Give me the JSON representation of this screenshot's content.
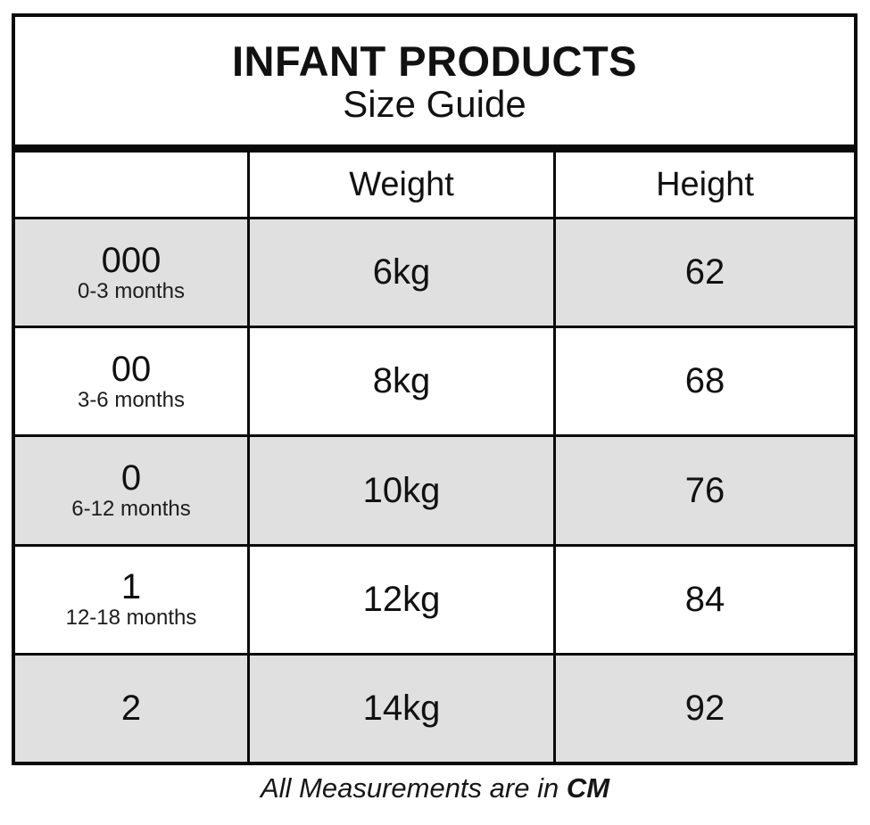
{
  "title": {
    "line1": "INFANT PRODUCTS",
    "line2": "Size Guide"
  },
  "table": {
    "columns": [
      "",
      "Weight",
      "Height"
    ],
    "rows": [
      {
        "size": "000",
        "age": "0-3 months",
        "weight": "6kg",
        "height": "62",
        "shaded": true
      },
      {
        "size": "00",
        "age": "3-6 months",
        "weight": "8kg",
        "height": "68",
        "shaded": false
      },
      {
        "size": "0",
        "age": "6-12 months",
        "weight": "10kg",
        "height": "76",
        "shaded": true
      },
      {
        "size": "1",
        "age": "12-18 months",
        "weight": "12kg",
        "height": "84",
        "shaded": false
      },
      {
        "size": "2",
        "age": "",
        "weight": "14kg",
        "height": "92",
        "shaded": true
      }
    ]
  },
  "footer": {
    "prefix": "All Measurements are in ",
    "unit": "CM"
  },
  "colors": {
    "row_shaded": "#e0e0e1",
    "border": "#0a0a0a",
    "background": "#ffffff",
    "text": "#111111"
  }
}
